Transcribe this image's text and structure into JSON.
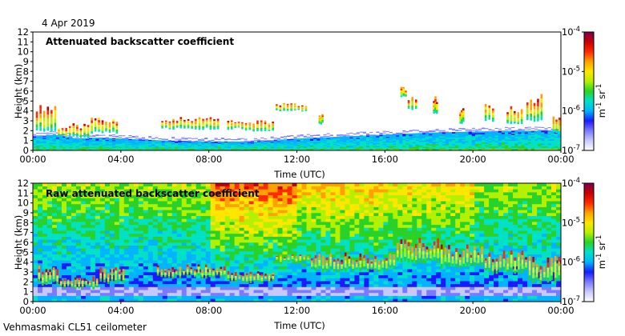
{
  "header": {
    "date": "4 Apr 2019"
  },
  "footer": {
    "site": "Vehmasmaki CL51 ceilometer"
  },
  "colors": {
    "scale": [
      "#ffffff",
      "#c8c8ff",
      "#7a7aff",
      "#1a1aff",
      "#00b4ff",
      "#00e1c8",
      "#28d228",
      "#b4f000",
      "#ffe600",
      "#ffa000",
      "#ff2800",
      "#c80000",
      "#780050"
    ]
  },
  "chart_data": [
    {
      "type": "heatmap",
      "title": "Attenuated backscatter coefficient",
      "xlabel": "Time (UTC)",
      "ylabel": "Height (km)",
      "xlim": [
        0,
        24
      ],
      "ylim": [
        0,
        12
      ],
      "x_ticks": [
        "00:00",
        "04:00",
        "08:00",
        "12:00",
        "16:00",
        "20:00",
        "00:00"
      ],
      "y_ticks": [
        "0",
        "1",
        "2",
        "3",
        "4",
        "5",
        "6",
        "7",
        "8",
        "9",
        "10",
        "11",
        "12"
      ],
      "colorbar": {
        "unit_lines": [
          "m",
          "-1",
          " sr",
          "-1"
        ],
        "ticks": [
          {
            "base": "10",
            "exp": "-4",
            "value": 0.0001
          },
          {
            "base": "10",
            "exp": "-5",
            "value": 1e-05
          },
          {
            "base": "10",
            "exp": "-6",
            "value": 1e-06
          },
          {
            "base": "10",
            "exp": "-7",
            "value": 1e-07
          }
        ]
      },
      "boundary_layer_top_km": [
        [
          0,
          1.4
        ],
        [
          1,
          1.6
        ],
        [
          2,
          1.2
        ],
        [
          3,
          1.3
        ],
        [
          4,
          1.2
        ],
        [
          6,
          1.0
        ],
        [
          8,
          0.9
        ],
        [
          10,
          0.9
        ],
        [
          12,
          1.2
        ],
        [
          14,
          1.4
        ],
        [
          16,
          1.6
        ],
        [
          18,
          1.8
        ],
        [
          20,
          1.9
        ],
        [
          22,
          2.0
        ],
        [
          24,
          2.0
        ]
      ],
      "cloud_layers": [
        {
          "t0": 0.1,
          "t1": 1.1,
          "base_km": 2.0,
          "top_km": 4.8
        },
        {
          "t0": 1.1,
          "t1": 2.6,
          "base_km": 1.3,
          "top_km": 2.8
        },
        {
          "t0": 2.6,
          "t1": 3.9,
          "base_km": 1.8,
          "top_km": 3.5
        },
        {
          "t0": 5.8,
          "t1": 8.5,
          "base_km": 2.2,
          "top_km": 3.4
        },
        {
          "t0": 8.8,
          "t1": 9.6,
          "base_km": 2.2,
          "top_km": 3.2
        },
        {
          "t0": 9.6,
          "t1": 11.0,
          "base_km": 2.0,
          "top_km": 3.1
        },
        {
          "t0": 11.0,
          "t1": 12.5,
          "base_km": 4.0,
          "top_km": 4.8
        },
        {
          "t0": 13.0,
          "t1": 13.2,
          "base_km": 2.7,
          "top_km": 3.7
        },
        {
          "t0": 16.7,
          "t1": 17.0,
          "base_km": 5.5,
          "top_km": 6.5
        },
        {
          "t0": 17.0,
          "t1": 17.5,
          "base_km": 4.2,
          "top_km": 5.6
        },
        {
          "t0": 18.2,
          "t1": 18.4,
          "base_km": 3.8,
          "top_km": 5.5
        },
        {
          "t0": 19.4,
          "t1": 19.6,
          "base_km": 2.8,
          "top_km": 4.5
        },
        {
          "t0": 20.5,
          "t1": 21.0,
          "base_km": 3.0,
          "top_km": 5.0
        },
        {
          "t0": 21.5,
          "t1": 22.3,
          "base_km": 2.7,
          "top_km": 4.5
        },
        {
          "t0": 22.4,
          "t1": 23.2,
          "base_km": 3.0,
          "top_km": 5.8
        },
        {
          "t0": 23.6,
          "t1": 24.0,
          "base_km": 1.8,
          "top_km": 3.8
        }
      ]
    },
    {
      "type": "heatmap",
      "title": "Raw attenuated backscatter coefficient",
      "xlabel": "Time (UTC)",
      "ylabel": "Height (km)",
      "xlim": [
        0,
        24
      ],
      "ylim": [
        0,
        12
      ],
      "x_ticks": [
        "00:00",
        "04:00",
        "08:00",
        "12:00",
        "16:00",
        "20:00",
        "00:00"
      ],
      "y_ticks": [
        "0",
        "1",
        "2",
        "3",
        "4",
        "5",
        "6",
        "7",
        "8",
        "9",
        "10",
        "11",
        "12"
      ],
      "colorbar": {
        "unit_lines": [
          "m",
          "-1",
          " sr",
          "-1"
        ],
        "ticks": [
          {
            "base": "10",
            "exp": "-4",
            "value": 0.0001
          },
          {
            "base": "10",
            "exp": "-5",
            "value": 1e-05
          },
          {
            "base": "10",
            "exp": "-6",
            "value": 1e-06
          },
          {
            "base": "10",
            "exp": "-7",
            "value": 1e-07
          }
        ]
      },
      "noise_band_km": [
        2.0,
        12.0
      ],
      "noisy_hours": [
        [
          8,
          12,
          3.0
        ],
        [
          12,
          16,
          1.6
        ],
        [
          16,
          20,
          1.2
        ]
      ],
      "cloud_layers": [
        {
          "t0": 0.2,
          "t1": 1.2,
          "base_km": 1.8,
          "top_km": 3.8
        },
        {
          "t0": 1.2,
          "t1": 3.0,
          "base_km": 1.4,
          "top_km": 2.6
        },
        {
          "t0": 3.0,
          "t1": 4.2,
          "base_km": 2.0,
          "top_km": 3.6
        },
        {
          "t0": 5.6,
          "t1": 8.8,
          "base_km": 2.5,
          "top_km": 3.8
        },
        {
          "t0": 8.8,
          "t1": 11.0,
          "base_km": 2.0,
          "top_km": 3.2
        },
        {
          "t0": 11.0,
          "t1": 12.6,
          "base_km": 4.0,
          "top_km": 4.8
        },
        {
          "t0": 12.6,
          "t1": 16.5,
          "base_km": 3.2,
          "top_km": 5.0
        },
        {
          "t0": 16.5,
          "t1": 18.5,
          "base_km": 4.0,
          "top_km": 6.5
        },
        {
          "t0": 18.5,
          "t1": 20.5,
          "base_km": 3.5,
          "top_km": 5.8
        },
        {
          "t0": 20.5,
          "t1": 22.5,
          "base_km": 3.0,
          "top_km": 5.2
        },
        {
          "t0": 22.5,
          "t1": 24.0,
          "base_km": 2.0,
          "top_km": 4.8
        }
      ]
    }
  ]
}
